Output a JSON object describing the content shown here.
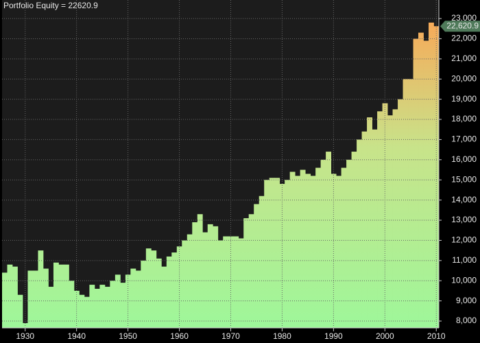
{
  "chart_data": {
    "type": "step-area",
    "title": "Portfolio Equity = 22620.9",
    "x": [
      1926,
      1927,
      1928,
      1929,
      1930,
      1931,
      1932,
      1933,
      1934,
      1935,
      1936,
      1937,
      1938,
      1939,
      1940,
      1941,
      1942,
      1943,
      1944,
      1945,
      1946,
      1947,
      1948,
      1949,
      1950,
      1951,
      1952,
      1953,
      1954,
      1955,
      1956,
      1957,
      1958,
      1959,
      1960,
      1961,
      1962,
      1963,
      1964,
      1965,
      1966,
      1967,
      1968,
      1969,
      1970,
      1971,
      1972,
      1973,
      1974,
      1975,
      1976,
      1977,
      1978,
      1979,
      1980,
      1981,
      1982,
      1983,
      1984,
      1985,
      1986,
      1987,
      1988,
      1989,
      1990,
      1991,
      1992,
      1993,
      1994,
      1995,
      1996,
      1997,
      1998,
      1999,
      2000,
      2001,
      2002,
      2003,
      2004,
      2005,
      2006,
      2007,
      2008,
      2009,
      2010
    ],
    "values": [
      10400,
      10800,
      10700,
      9300,
      7900,
      10500,
      10500,
      11500,
      10600,
      9700,
      10900,
      10800,
      10800,
      10000,
      9500,
      9300,
      9200,
      9800,
      9600,
      9800,
      9700,
      10000,
      10300,
      9900,
      10300,
      10600,
      10500,
      11000,
      11600,
      11500,
      11100,
      10700,
      11200,
      11400,
      11700,
      12000,
      12300,
      12900,
      13300,
      12400,
      12800,
      12700,
      12000,
      12200,
      12200,
      12200,
      12100,
      13100,
      13300,
      13800,
      14200,
      15000,
      15100,
      15100,
      14800,
      15000,
      15400,
      15200,
      15500,
      15300,
      15200,
      15600,
      16000,
      16400,
      15300,
      15200,
      15600,
      16000,
      16400,
      17000,
      17400,
      18100,
      17500,
      18400,
      18800,
      18200,
      18500,
      19000,
      20000,
      20000,
      22000,
      22300,
      21900,
      22800,
      22620.9
    ],
    "xlim": [
      1925.5,
      2010.5
    ],
    "xticks": [
      1930,
      1940,
      1950,
      1960,
      1970,
      1980,
      1990,
      2000,
      2010
    ],
    "ylim": [
      7660,
      23920
    ],
    "yticks": [
      {
        "value": 8000,
        "label": "8,000"
      },
      {
        "value": 9000,
        "label": "9,000"
      },
      {
        "value": 10000,
        "label": "10,000"
      },
      {
        "value": 11000,
        "label": "11,000"
      },
      {
        "value": 12000,
        "label": "12,000"
      },
      {
        "value": 13000,
        "label": "13,000"
      },
      {
        "value": 14000,
        "label": "14,000"
      },
      {
        "value": 15000,
        "label": "15,000"
      },
      {
        "value": 16000,
        "label": "16,000"
      },
      {
        "value": 17000,
        "label": "17,000"
      },
      {
        "value": 18000,
        "label": "18,000"
      },
      {
        "value": 19000,
        "label": "19,000"
      },
      {
        "value": 20000,
        "label": "20,000"
      },
      {
        "value": 21000,
        "label": "21,000"
      },
      {
        "value": 22000,
        "label": "22,000"
      },
      {
        "value": 23000,
        "label": "23,000"
      }
    ],
    "current_value": {
      "value": 22620.9,
      "label": "22,620.9"
    },
    "grid": true
  }
}
